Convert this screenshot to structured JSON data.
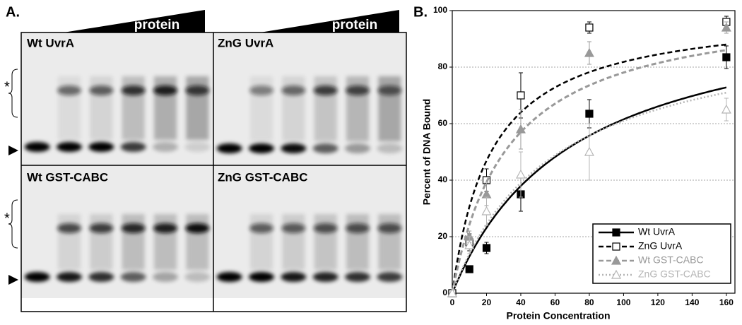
{
  "panel_a": {
    "label": "A.",
    "wedge_labels": [
      "protein",
      "protein"
    ],
    "gels": [
      "Wt UvrA",
      "ZnG UvrA",
      "Wt GST-CABC",
      "ZnG GST-CABC"
    ],
    "complex_marks": [
      "*",
      "*"
    ]
  },
  "chart_data": {
    "type": "scatter",
    "panel_label": "B.",
    "x_label": "Protein Concentration",
    "y_label": "Percent of DNA Bound",
    "xlim": [
      0,
      165
    ],
    "ylim": [
      0,
      100
    ],
    "xticks": [
      0,
      20,
      40,
      60,
      80,
      100,
      120,
      140,
      160
    ],
    "yticks": [
      0,
      20,
      40,
      60,
      80,
      100
    ],
    "grid": true,
    "legend": "lower right",
    "x": [
      0,
      10,
      20,
      40,
      80,
      160
    ],
    "series": [
      {
        "name": "Wt UvrA",
        "color": "#000000",
        "line_style": "solid",
        "marker": "square-filled",
        "values": [
          0,
          8.5,
          16,
          35,
          63.5,
          83.5
        ],
        "errors": [
          0,
          1,
          2,
          6,
          5,
          4
        ],
        "fit": {
          "bmax": 105,
          "kd": 70.7
        }
      },
      {
        "name": "ZnG UvrA",
        "color": "#000000",
        "line_style": "dashed",
        "marker": "square-open",
        "values": [
          0,
          18,
          40,
          70,
          94,
          96
        ],
        "errors": [
          0,
          3,
          4,
          8,
          2,
          2
        ],
        "fit": {
          "bmax": 100.6,
          "kd": 22.9
        }
      },
      {
        "name": "Wt GST-CABC",
        "color": "#999999",
        "line_style": "dashed",
        "marker": "triangle-filled",
        "values": [
          0,
          20,
          35,
          58,
          85,
          94
        ],
        "errors": [
          0,
          2,
          4,
          7,
          4,
          2
        ],
        "fit": {
          "bmax": 103.6,
          "kd": 32.7
        }
      },
      {
        "name": "ZnG GST-CABC",
        "color": "#b5b5b5",
        "line_style": "dotted",
        "marker": "triangle-open",
        "values": [
          0,
          17,
          29,
          42,
          50,
          65
        ],
        "errors": [
          0,
          3,
          5,
          8,
          10,
          4
        ],
        "fit": {
          "bmax": 97.6,
          "kd": 60
        }
      }
    ]
  }
}
